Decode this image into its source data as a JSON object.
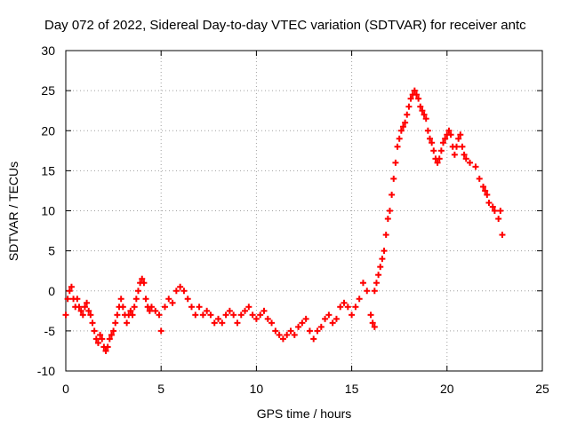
{
  "chart_data": {
    "type": "scatter",
    "title": "Day 072 of 2022, Sidereal Day-to-day VTEC variation (SDTVAR) for receiver antc",
    "xlabel": "GPS time / hours",
    "ylabel": "SDTVAR / TECUs",
    "xlim": [
      0,
      25
    ],
    "ylim": [
      -10,
      30
    ],
    "xticks": [
      "0",
      "5",
      "10",
      "15",
      "20",
      "25"
    ],
    "yticks": [
      "-10",
      "-5",
      "0",
      "5",
      "10",
      "15",
      "20",
      "25",
      "30"
    ],
    "grid": true,
    "marker": "plus",
    "color": "#ff0000",
    "series": [
      {
        "name": "SDTVAR",
        "points": [
          [
            0.0,
            -3
          ],
          [
            0.1,
            -1
          ],
          [
            0.2,
            0
          ],
          [
            0.3,
            0.5
          ],
          [
            0.4,
            -1
          ],
          [
            0.5,
            -2
          ],
          [
            0.6,
            -1
          ],
          [
            0.7,
            -2
          ],
          [
            0.8,
            -2.5
          ],
          [
            0.9,
            -3
          ],
          [
            1.0,
            -2
          ],
          [
            1.1,
            -1.5
          ],
          [
            1.2,
            -2.5
          ],
          [
            1.3,
            -3
          ],
          [
            1.4,
            -4
          ],
          [
            1.5,
            -5
          ],
          [
            1.6,
            -6
          ],
          [
            1.7,
            -6.5
          ],
          [
            1.8,
            -5.5
          ],
          [
            1.9,
            -6
          ],
          [
            2.0,
            -7
          ],
          [
            2.1,
            -7.5
          ],
          [
            2.2,
            -7
          ],
          [
            2.3,
            -6
          ],
          [
            2.4,
            -5.5
          ],
          [
            2.5,
            -5
          ],
          [
            2.6,
            -4
          ],
          [
            2.7,
            -3
          ],
          [
            2.8,
            -2
          ],
          [
            2.9,
            -1
          ],
          [
            3.0,
            -2
          ],
          [
            3.1,
            -3
          ],
          [
            3.2,
            -4
          ],
          [
            3.3,
            -3
          ],
          [
            3.4,
            -2.5
          ],
          [
            3.5,
            -3
          ],
          [
            3.6,
            -2
          ],
          [
            3.7,
            -1
          ],
          [
            3.8,
            0
          ],
          [
            3.9,
            1
          ],
          [
            4.0,
            1.5
          ],
          [
            4.1,
            1
          ],
          [
            4.2,
            -1
          ],
          [
            4.3,
            -2
          ],
          [
            4.4,
            -2.5
          ],
          [
            4.5,
            -2
          ],
          [
            4.7,
            -2.5
          ],
          [
            4.9,
            -3
          ],
          [
            5.0,
            -5
          ],
          [
            5.2,
            -2
          ],
          [
            5.4,
            -1
          ],
          [
            5.6,
            -1.5
          ],
          [
            5.8,
            0
          ],
          [
            6.0,
            0.5
          ],
          [
            6.2,
            0
          ],
          [
            6.4,
            -1
          ],
          [
            6.6,
            -2
          ],
          [
            6.8,
            -3
          ],
          [
            7.0,
            -2
          ],
          [
            7.2,
            -3
          ],
          [
            7.4,
            -2.5
          ],
          [
            7.6,
            -3
          ],
          [
            7.8,
            -4
          ],
          [
            8.0,
            -3.5
          ],
          [
            8.2,
            -4
          ],
          [
            8.4,
            -3
          ],
          [
            8.6,
            -2.5
          ],
          [
            8.8,
            -3
          ],
          [
            9.0,
            -4
          ],
          [
            9.2,
            -3
          ],
          [
            9.4,
            -2.5
          ],
          [
            9.6,
            -2
          ],
          [
            9.8,
            -3
          ],
          [
            10.0,
            -3.5
          ],
          [
            10.2,
            -3
          ],
          [
            10.4,
            -2.5
          ],
          [
            10.6,
            -3.5
          ],
          [
            10.8,
            -4
          ],
          [
            11.0,
            -5
          ],
          [
            11.2,
            -5.5
          ],
          [
            11.4,
            -6
          ],
          [
            11.6,
            -5.5
          ],
          [
            11.8,
            -5
          ],
          [
            12.0,
            -5.5
          ],
          [
            12.2,
            -4.5
          ],
          [
            12.4,
            -4
          ],
          [
            12.6,
            -3.5
          ],
          [
            12.8,
            -5
          ],
          [
            13.0,
            -6
          ],
          [
            13.2,
            -5
          ],
          [
            13.4,
            -4.5
          ],
          [
            13.6,
            -3.5
          ],
          [
            13.8,
            -3
          ],
          [
            14.0,
            -4
          ],
          [
            14.2,
            -3.5
          ],
          [
            14.4,
            -2
          ],
          [
            14.6,
            -1.5
          ],
          [
            14.8,
            -2
          ],
          [
            15.0,
            -3
          ],
          [
            15.2,
            -2
          ],
          [
            15.4,
            -1
          ],
          [
            15.6,
            1
          ],
          [
            15.8,
            0
          ],
          [
            16.0,
            -3
          ],
          [
            16.1,
            -4
          ],
          [
            16.2,
            -4.5
          ],
          [
            16.2,
            0
          ],
          [
            16.3,
            1
          ],
          [
            16.4,
            2
          ],
          [
            16.5,
            3
          ],
          [
            16.6,
            4
          ],
          [
            16.7,
            5
          ],
          [
            16.8,
            7
          ],
          [
            16.9,
            9
          ],
          [
            17.0,
            10
          ],
          [
            17.1,
            12
          ],
          [
            17.2,
            14
          ],
          [
            17.3,
            16
          ],
          [
            17.4,
            18
          ],
          [
            17.5,
            19
          ],
          [
            17.6,
            20
          ],
          [
            17.7,
            20.5
          ],
          [
            17.8,
            21
          ],
          [
            17.9,
            22
          ],
          [
            18.0,
            23
          ],
          [
            18.1,
            24
          ],
          [
            18.2,
            24.5
          ],
          [
            18.3,
            25
          ],
          [
            18.4,
            24.5
          ],
          [
            18.5,
            24
          ],
          [
            18.6,
            23
          ],
          [
            18.7,
            22.5
          ],
          [
            18.8,
            22
          ],
          [
            18.9,
            21.5
          ],
          [
            19.0,
            20
          ],
          [
            19.1,
            19
          ],
          [
            19.2,
            18.5
          ],
          [
            19.3,
            17.5
          ],
          [
            19.4,
            16.5
          ],
          [
            19.5,
            16
          ],
          [
            19.6,
            16.5
          ],
          [
            19.7,
            17.5
          ],
          [
            19.8,
            18.5
          ],
          [
            19.9,
            19
          ],
          [
            20.0,
            19.5
          ],
          [
            20.1,
            20
          ],
          [
            20.2,
            19.5
          ],
          [
            20.3,
            18
          ],
          [
            20.4,
            17
          ],
          [
            20.5,
            18
          ],
          [
            20.6,
            19
          ],
          [
            20.7,
            19.5
          ],
          [
            20.8,
            18
          ],
          [
            20.9,
            17
          ],
          [
            21.0,
            16.5
          ],
          [
            21.2,
            16
          ],
          [
            21.5,
            15.5
          ],
          [
            21.7,
            14
          ],
          [
            21.9,
            13
          ],
          [
            22.0,
            12.5
          ],
          [
            22.1,
            12
          ],
          [
            22.2,
            11
          ],
          [
            22.4,
            10.5
          ],
          [
            22.5,
            10
          ],
          [
            22.7,
            9
          ],
          [
            22.8,
            10
          ],
          [
            22.9,
            7
          ]
        ]
      }
    ]
  }
}
